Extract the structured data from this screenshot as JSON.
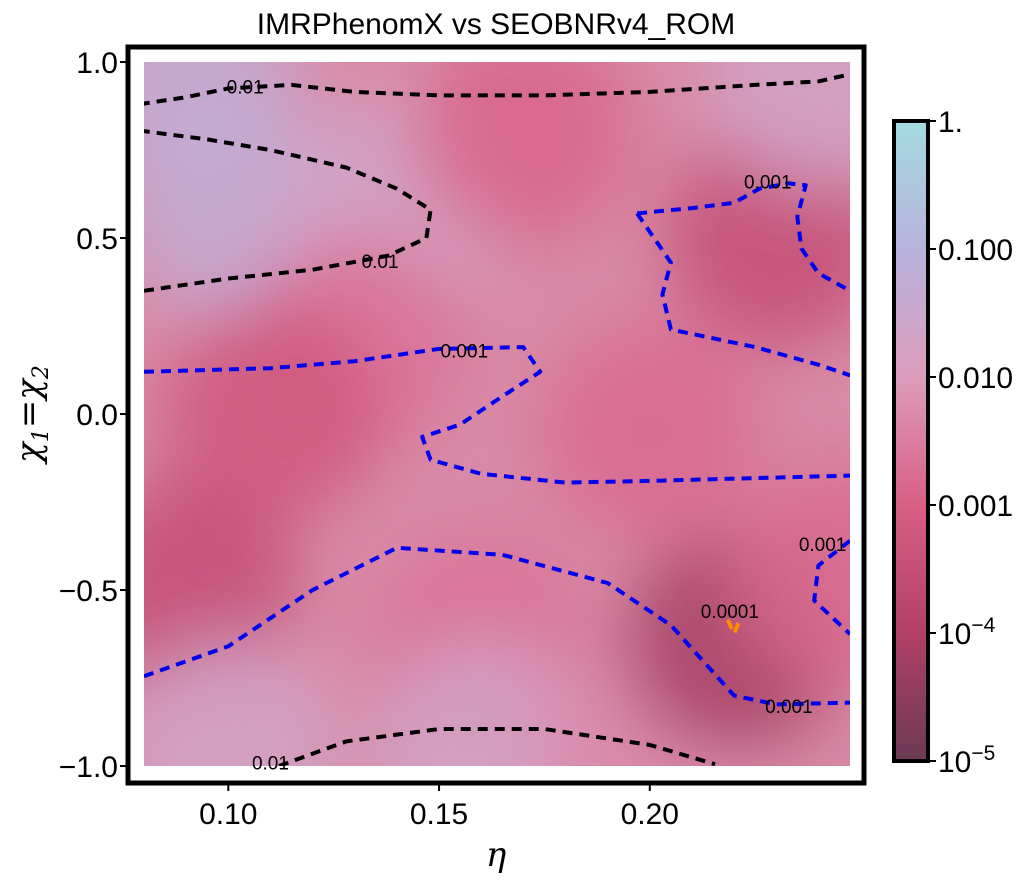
{
  "chart_data": {
    "type": "heatmap",
    "title": "IMRPhenomX vs SEOBNRv4_ROM",
    "xlabel": "η",
    "ylabel": {
      "base": "χ",
      "sub1": "1",
      "eq": "=",
      "sub2": "2"
    },
    "xlim": [
      0.08,
      0.2475
    ],
    "ylim": [
      -1.0,
      1.0
    ],
    "x_ticks": [
      {
        "value": 0.1,
        "label": "0.10"
      },
      {
        "value": 0.15,
        "label": "0.15"
      },
      {
        "value": 0.2,
        "label": "0.20"
      }
    ],
    "y_ticks": [
      {
        "value": 1.0,
        "label": "1.0"
      },
      {
        "value": 0.5,
        "label": "0.5"
      },
      {
        "value": 0.0,
        "label": "0.0"
      },
      {
        "value": -0.5,
        "label": "−0.5"
      },
      {
        "value": -1.0,
        "label": "−1.0"
      }
    ],
    "colorbar": {
      "scale": "log",
      "range": [
        1e-05,
        1.0
      ],
      "colors": [
        "#6b3a55",
        "#b13f66",
        "#d85f85",
        "#dd9cbc",
        "#b8b2dd",
        "#a3dbe0"
      ],
      "ticks": [
        {
          "value": 1.0,
          "base": "1.",
          "exp": ""
        },
        {
          "value": 0.1,
          "base": "0.100",
          "exp": ""
        },
        {
          "value": 0.01,
          "base": "0.010",
          "exp": ""
        },
        {
          "value": 0.001,
          "base": "0.001",
          "exp": ""
        },
        {
          "value": 0.0001,
          "base": "10",
          "exp": "−4"
        },
        {
          "value": 1e-05,
          "base": "10",
          "exp": "−5"
        }
      ]
    },
    "mismatch_field_samples": [
      {
        "eta": 0.09,
        "chi": 0.97,
        "mismatch": 0.05
      },
      {
        "eta": 0.1,
        "chi": 0.6,
        "mismatch": 0.05
      },
      {
        "eta": 0.14,
        "chi": 0.6,
        "mismatch": 0.02
      },
      {
        "eta": 0.13,
        "chi": 0.2,
        "mismatch": 0.002
      },
      {
        "eta": 0.11,
        "chi": 0.0,
        "mismatch": 0.0006
      },
      {
        "eta": 0.09,
        "chi": -0.5,
        "mismatch": 0.0003
      },
      {
        "eta": 0.16,
        "chi": -0.65,
        "mismatch": 0.002
      },
      {
        "eta": 0.16,
        "chi": -0.95,
        "mismatch": 0.02
      },
      {
        "eta": 0.1,
        "chi": -0.95,
        "mismatch": 0.02
      },
      {
        "eta": 0.2,
        "chi": -0.95,
        "mismatch": 0.005
      },
      {
        "eta": 0.17,
        "chi": 0.8,
        "mismatch": 0.0012
      },
      {
        "eta": 0.23,
        "chi": 0.5,
        "mismatch": 0.0003
      },
      {
        "eta": 0.2,
        "chi": -0.05,
        "mismatch": 0.0015
      },
      {
        "eta": 0.22,
        "chi": -0.65,
        "mismatch": 7e-05
      },
      {
        "eta": 0.245,
        "chi": -0.45,
        "mismatch": 0.0015
      },
      {
        "eta": 0.24,
        "chi": 0.95,
        "mismatch": 0.02
      }
    ],
    "contours": [
      {
        "level": 0.01,
        "label": "0.01",
        "color": "#000000",
        "label_at": [
          0.104,
          0.93
        ],
        "points": [
          [
            0.079,
            0.88
          ],
          [
            0.09,
            0.9
          ],
          [
            0.1,
            0.925
          ],
          [
            0.115,
            0.935
          ],
          [
            0.13,
            0.915
          ],
          [
            0.15,
            0.905
          ],
          [
            0.175,
            0.905
          ],
          [
            0.2,
            0.915
          ],
          [
            0.225,
            0.935
          ],
          [
            0.24,
            0.945
          ],
          [
            0.2475,
            0.965
          ]
        ]
      },
      {
        "level": 0.01,
        "label": "0.01",
        "color": "#000000",
        "label_at": [
          0.136,
          0.435
        ],
        "points": [
          [
            0.079,
            0.805
          ],
          [
            0.095,
            0.78
          ],
          [
            0.11,
            0.75
          ],
          [
            0.128,
            0.7
          ],
          [
            0.14,
            0.64
          ],
          [
            0.148,
            0.58
          ],
          [
            0.147,
            0.5
          ],
          [
            0.138,
            0.45
          ],
          [
            0.12,
            0.41
          ],
          [
            0.1,
            0.385
          ],
          [
            0.08,
            0.35
          ]
        ]
      },
      {
        "level": 0.001,
        "label": "0.001",
        "color": "#0000ee",
        "label_at": [
          0.228,
          0.66
        ],
        "points": [
          [
            0.197,
            0.57
          ],
          [
            0.21,
            0.585
          ],
          [
            0.22,
            0.6
          ],
          [
            0.226,
            0.64
          ],
          [
            0.233,
            0.655
          ],
          [
            0.237,
            0.65
          ],
          [
            0.235,
            0.56
          ],
          [
            0.236,
            0.47
          ],
          [
            0.24,
            0.4
          ],
          [
            0.2475,
            0.35
          ]
        ]
      },
      {
        "level": 0.001,
        "label": "0.001",
        "color": "#0000ee",
        "label_at": null,
        "points": [
          [
            0.197,
            0.57
          ],
          [
            0.201,
            0.5
          ],
          [
            0.205,
            0.43
          ],
          [
            0.203,
            0.34
          ],
          [
            0.205,
            0.24
          ],
          [
            0.225,
            0.19
          ],
          [
            0.24,
            0.14
          ],
          [
            0.2475,
            0.11
          ]
        ]
      },
      {
        "level": 0.001,
        "label": "0.001",
        "color": "#0000ee",
        "label_at": [
          0.156,
          0.18
        ],
        "points": [
          [
            0.08,
            0.12
          ],
          [
            0.11,
            0.13
          ],
          [
            0.13,
            0.15
          ],
          [
            0.15,
            0.185
          ],
          [
            0.17,
            0.19
          ],
          [
            0.174,
            0.12
          ],
          [
            0.165,
            0.05
          ],
          [
            0.155,
            -0.03
          ],
          [
            0.146,
            -0.065
          ],
          [
            0.148,
            -0.13
          ],
          [
            0.16,
            -0.17
          ],
          [
            0.18,
            -0.195
          ],
          [
            0.2,
            -0.19
          ],
          [
            0.2475,
            -0.175
          ]
        ]
      },
      {
        "level": 0.001,
        "label": "0.001",
        "color": "#0000ee",
        "label_at": [
          0.241,
          -0.37
        ],
        "points": [
          [
            0.08,
            -0.745
          ],
          [
            0.1,
            -0.66
          ],
          [
            0.12,
            -0.5
          ],
          [
            0.14,
            -0.38
          ],
          [
            0.165,
            -0.4
          ],
          [
            0.19,
            -0.48
          ],
          [
            0.205,
            -0.6
          ],
          [
            0.22,
            -0.8
          ],
          [
            0.23,
            -0.825
          ],
          [
            0.2475,
            -0.82
          ]
        ]
      },
      {
        "level": 0.001,
        "label": "0.001",
        "color": "#0000ee",
        "label_at": [
          0.233,
          -0.83
        ],
        "points": [
          [
            0.2475,
            -0.36
          ],
          [
            0.24,
            -0.43
          ],
          [
            0.239,
            -0.53
          ],
          [
            0.2475,
            -0.625
          ]
        ]
      },
      {
        "level": 0.0001,
        "label": "0.0001",
        "color": "#ff8c00",
        "label_at": [
          0.219,
          -0.56
        ],
        "points": [
          [
            0.2185,
            -0.585
          ],
          [
            0.22,
            -0.625
          ],
          [
            0.2215,
            -0.58
          ]
        ]
      },
      {
        "level": 0.01,
        "label": "0.01",
        "color": "#000000",
        "label_at": [
          0.11,
          -0.99
        ],
        "points": [
          [
            0.112,
            -1.0
          ],
          [
            0.128,
            -0.93
          ],
          [
            0.15,
            -0.895
          ],
          [
            0.175,
            -0.895
          ],
          [
            0.2,
            -0.94
          ],
          [
            0.2155,
            -0.995
          ]
        ]
      }
    ]
  }
}
